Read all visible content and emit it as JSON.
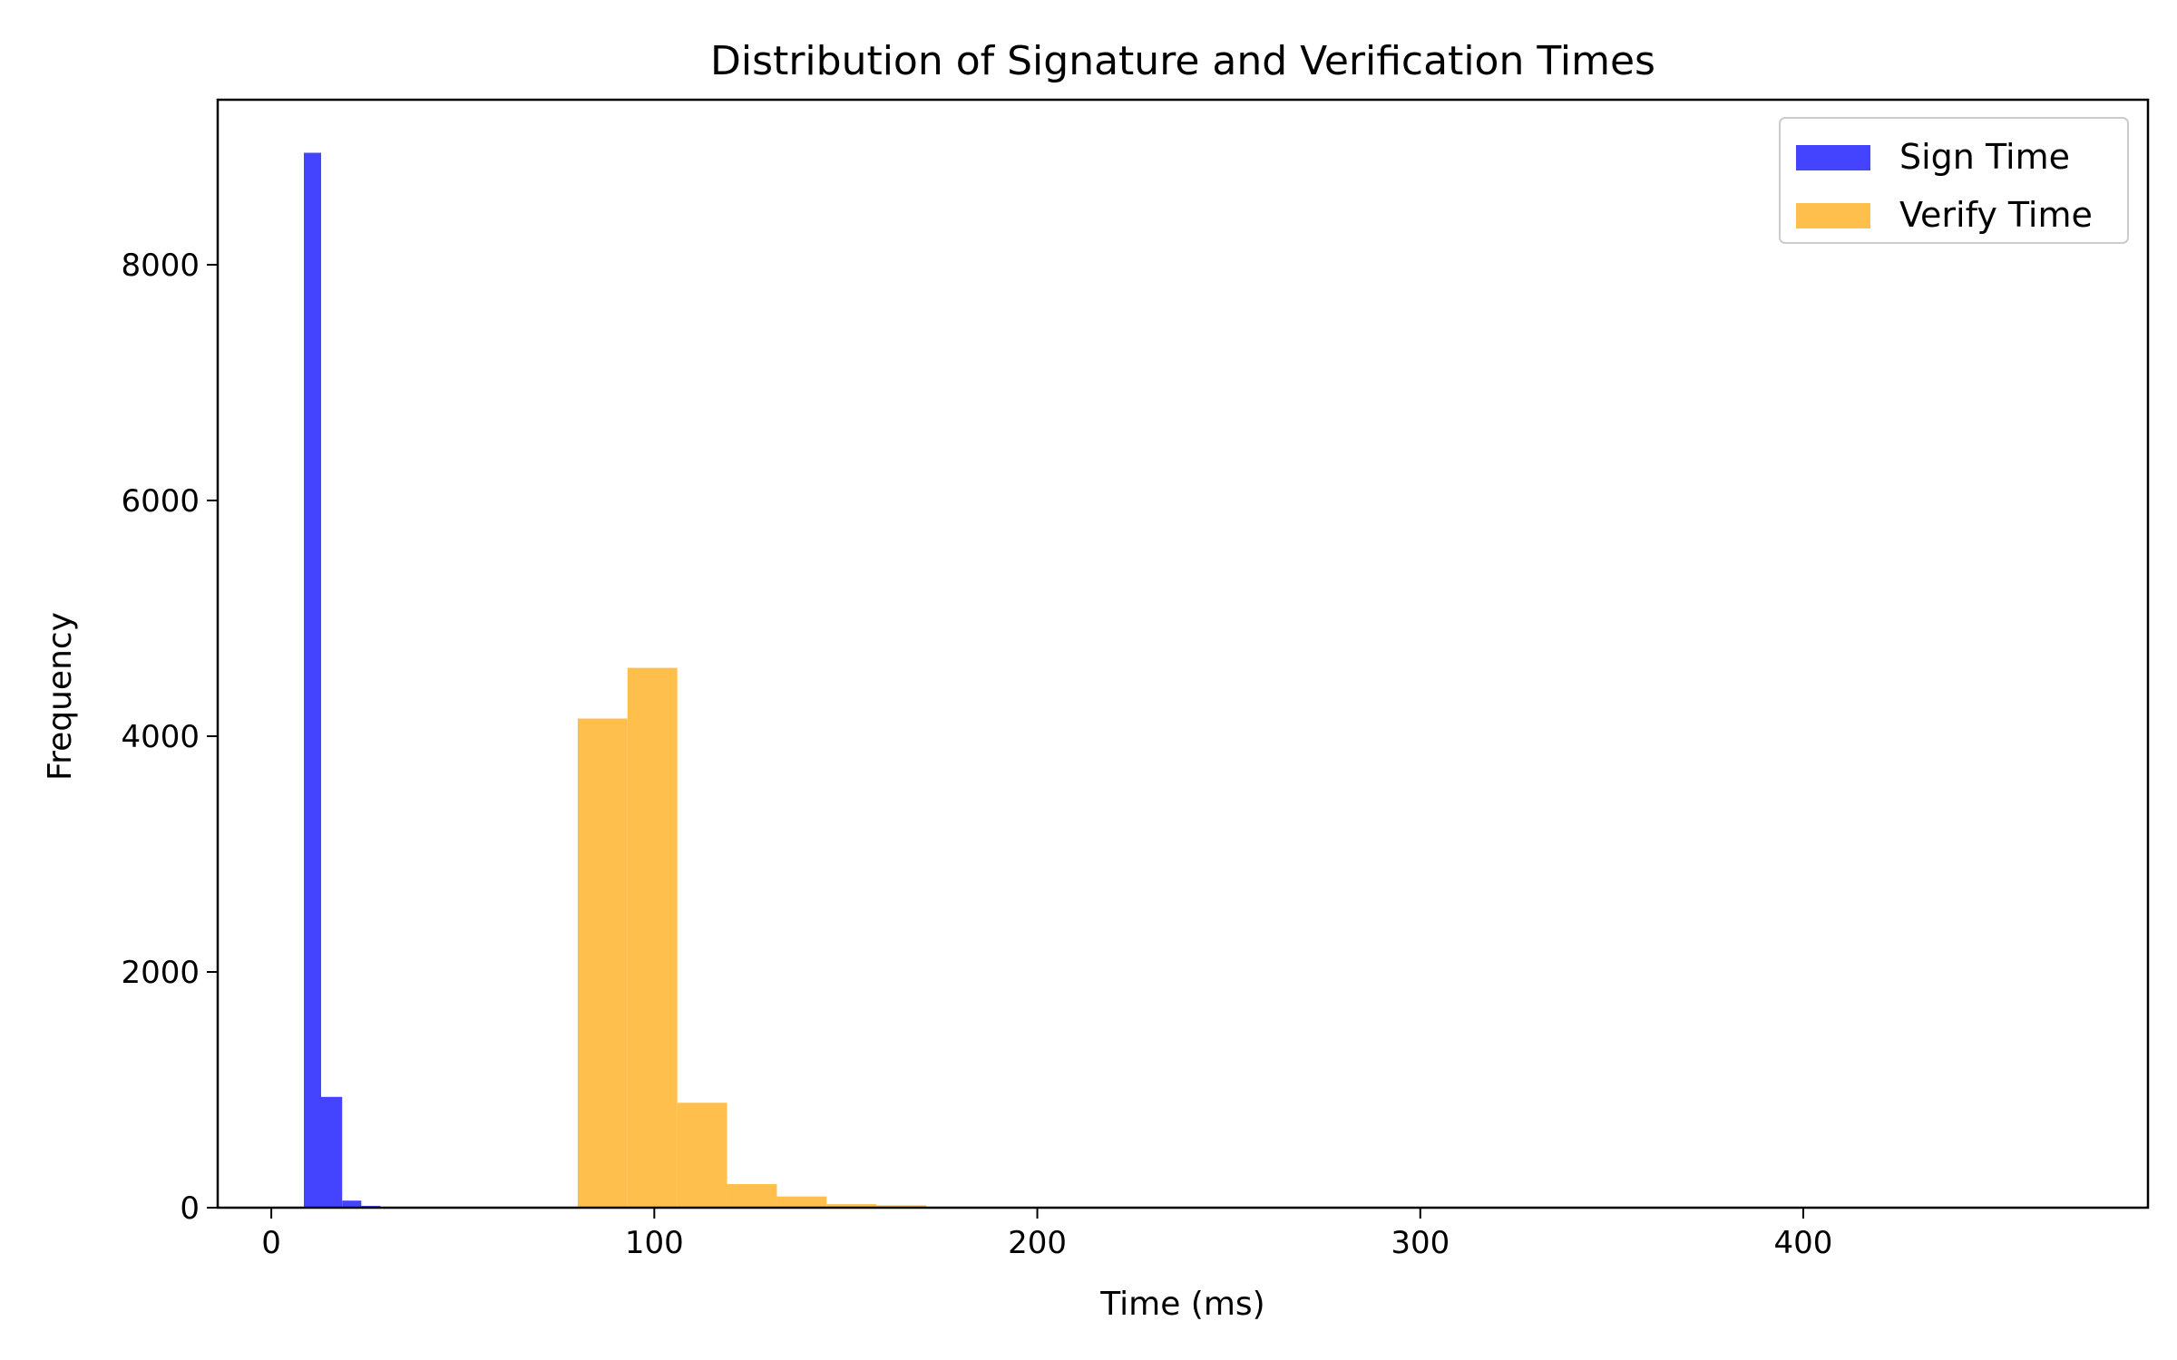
{
  "chart_data": {
    "type": "histogram",
    "title": "Distribution of Signature and Verification Times",
    "xlabel": "Time (ms)",
    "ylabel": "Frequency",
    "xlim": [
      -14,
      490
    ],
    "ylim": [
      0,
      9400
    ],
    "x_ticks": [
      0,
      100,
      200,
      300,
      400
    ],
    "y_ticks": [
      0,
      2000,
      4000,
      6000,
      8000
    ],
    "grid": false,
    "legend_position": "top-right",
    "series": [
      {
        "name": "Sign Time",
        "color": "#4444ff",
        "bins": [
          {
            "start": 8.5,
            "end": 13.0,
            "count": 8950
          },
          {
            "start": 13.0,
            "end": 18.5,
            "count": 940
          },
          {
            "start": 18.5,
            "end": 23.5,
            "count": 60
          },
          {
            "start": 23.5,
            "end": 28.5,
            "count": 15
          },
          {
            "start": 28.5,
            "end": 33.5,
            "count": 5
          }
        ]
      },
      {
        "name": "Verify Time",
        "color": "#ffbf4d",
        "bins": [
          {
            "start": 80.0,
            "end": 93.0,
            "count": 4150
          },
          {
            "start": 93.0,
            "end": 106.0,
            "count": 4580
          },
          {
            "start": 106.0,
            "end": 119.0,
            "count": 890
          },
          {
            "start": 119.0,
            "end": 132.0,
            "count": 200
          },
          {
            "start": 132.0,
            "end": 145.0,
            "count": 95
          },
          {
            "start": 145.0,
            "end": 158.0,
            "count": 30
          },
          {
            "start": 158.0,
            "end": 171.0,
            "count": 20
          },
          {
            "start": 171.0,
            "end": 184.0,
            "count": 8
          }
        ]
      }
    ]
  }
}
